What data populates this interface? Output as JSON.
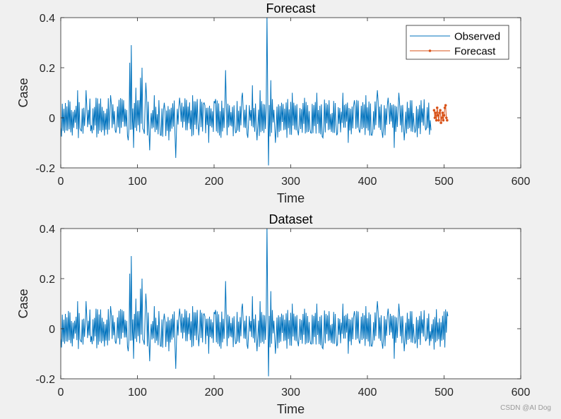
{
  "watermark": "CSDN @AI Dog",
  "chart_data": [
    {
      "type": "line",
      "title": "Forecast",
      "xlabel": "Time",
      "ylabel": "Case",
      "xlim": [
        0,
        600
      ],
      "ylim": [
        -0.2,
        0.4
      ],
      "xticks": [
        0,
        100,
        200,
        300,
        400,
        500,
        600
      ],
      "yticks": [
        -0.2,
        0,
        0.2,
        0.4
      ],
      "grid": false,
      "legend": {
        "location": "top-right",
        "entries": [
          "Observed",
          "Forecast"
        ]
      },
      "series": [
        {
          "name": "Observed",
          "color": "#0072bd",
          "style": "line",
          "x_range": [
            0,
            483
          ],
          "summary": "noisy series around 0 with amplitude ~0.05-0.1",
          "key_points": [
            [
              0,
              -0.04
            ],
            [
              22,
              0.11
            ],
            [
              26,
              -0.05
            ],
            [
              33,
              0.11
            ],
            [
              40,
              -0.03
            ],
            [
              46,
              0.08
            ],
            [
              55,
              -0.05
            ],
            [
              65,
              0.09
            ],
            [
              72,
              -0.06
            ],
            [
              82,
              0.07
            ],
            [
              88,
              -0.09
            ],
            [
              90,
              0.22
            ],
            [
              92,
              0.29
            ],
            [
              95,
              -0.12
            ],
            [
              98,
              0.12
            ],
            [
              101,
              -0.03
            ],
            [
              104,
              0.16
            ],
            [
              106,
              0.2
            ],
            [
              108,
              -0.05
            ],
            [
              111,
              0.14
            ],
            [
              116,
              -0.13
            ],
            [
              122,
              0.09
            ],
            [
              130,
              -0.07
            ],
            [
              135,
              0.06
            ],
            [
              141,
              -0.09
            ],
            [
              150,
              -0.16
            ],
            [
              155,
              0.08
            ],
            [
              165,
              -0.05
            ],
            [
              172,
              0.09
            ],
            [
              180,
              -0.07
            ],
            [
              187,
              0.06
            ],
            [
              193,
              -0.1
            ],
            [
              201,
              0.06
            ],
            [
              209,
              -0.08
            ],
            [
              215,
              0.19
            ],
            [
              220,
              0.05
            ],
            [
              228,
              -0.06
            ],
            [
              237,
              0.1
            ],
            [
              244,
              -0.08
            ],
            [
              250,
              0.13
            ],
            [
              256,
              -0.09
            ],
            [
              260,
              0.11
            ],
            [
              265,
              -0.06
            ],
            [
              269,
              0.41
            ],
            [
              271,
              -0.19
            ],
            [
              274,
              0.15
            ],
            [
              280,
              -0.1
            ],
            [
              288,
              0.06
            ],
            [
              295,
              -0.08
            ],
            [
              302,
              0.1
            ],
            [
              310,
              -0.07
            ],
            [
              318,
              0.08
            ],
            [
              326,
              -0.06
            ],
            [
              334,
              0.1
            ],
            [
              342,
              -0.08
            ],
            [
              350,
              0.07
            ],
            [
              360,
              -0.07
            ],
            [
              368,
              0.1
            ],
            [
              375,
              -0.1
            ],
            [
              383,
              0.07
            ],
            [
              390,
              -0.06
            ],
            [
              398,
              0.09
            ],
            [
              406,
              -0.07
            ],
            [
              413,
              0.11
            ],
            [
              420,
              -0.08
            ],
            [
              427,
              0.08
            ],
            [
              435,
              -0.12
            ],
            [
              441,
              0.1
            ],
            [
              448,
              -0.09
            ],
            [
              456,
              0.07
            ],
            [
              462,
              -0.06
            ],
            [
              470,
              0.07
            ],
            [
              476,
              -0.05
            ],
            [
              482,
              -0.01
            ]
          ]
        },
        {
          "name": "Forecast",
          "color": "#d95319",
          "style": "line-with-markers",
          "x": [
            487,
            488,
            489,
            490,
            491,
            492,
            493,
            494,
            495,
            496,
            497,
            498,
            499,
            500,
            501,
            502,
            503,
            504
          ],
          "y": [
            0.03,
            0.0,
            0.02,
            -0.01,
            0.04,
            0.01,
            -0.01,
            0.02,
            0.03,
            -0.02,
            0.0,
            0.02,
            -0.01,
            0.01,
            0.04,
            0.05,
            0.0,
            -0.01
          ]
        }
      ]
    },
    {
      "type": "line",
      "title": "Dataset",
      "xlabel": "Time",
      "ylabel": "Case",
      "xlim": [
        0,
        600
      ],
      "ylim": [
        -0.2,
        0.4
      ],
      "xticks": [
        0,
        100,
        200,
        300,
        400,
        500,
        600
      ],
      "yticks": [
        -0.2,
        0,
        0.2,
        0.4
      ],
      "grid": false,
      "series": [
        {
          "color": "#0072bd",
          "style": "line",
          "x_range": [
            0,
            505
          ],
          "summary": "same observed series extended to ~505, ending with an upturn to ~0.05"
        }
      ]
    }
  ]
}
